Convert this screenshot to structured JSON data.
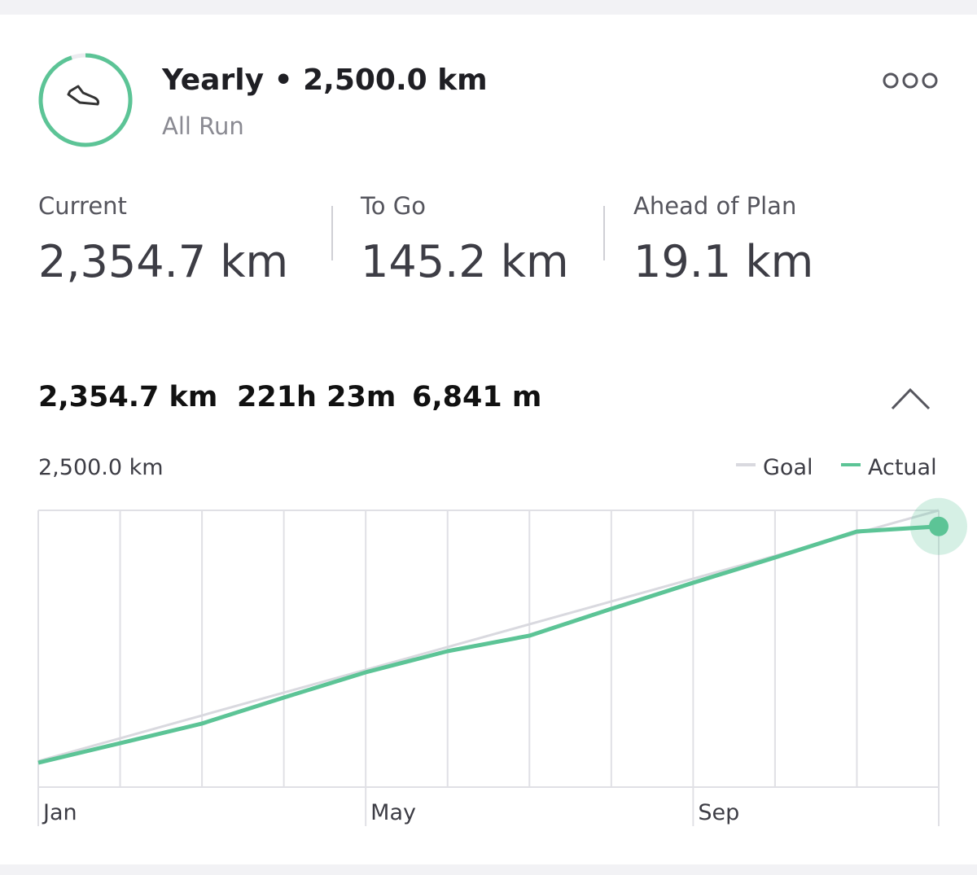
{
  "header": {
    "title": "Yearly • 2,500.0 km",
    "subtitle": "All Run"
  },
  "stats": [
    {
      "label": "Current",
      "value": "2,354.7 km"
    },
    {
      "label": "To Go",
      "value": "145.2 km"
    },
    {
      "label": "Ahead of Plan",
      "value": "19.1 km"
    }
  ],
  "summary": [
    "2,354.7 km",
    "221h 23m",
    "6,841 m"
  ],
  "chart_data": {
    "type": "line",
    "categories": [
      "Jan",
      null,
      null,
      null,
      "May",
      null,
      null,
      null,
      "Sep",
      null,
      null,
      null
    ],
    "series": [
      {
        "name": "Goal",
        "color": "#d9d9df",
        "values": [
          235,
          441,
          647,
          853,
          1059,
          1265,
          1471,
          1677,
          1883,
          2089,
          2294,
          2500
        ]
      },
      {
        "name": "Actual",
        "color": "#5cc496",
        "values": [
          220,
          397,
          574,
          809,
          1037,
          1228,
          1368,
          1610,
          1846,
          2074,
          2309,
          2354.7
        ]
      }
    ],
    "ylim": [
      0,
      2500
    ],
    "yticks": [
      {
        "value": 2500,
        "label": "2,500.0 km"
      }
    ],
    "grid": true,
    "legend": "top-right"
  }
}
